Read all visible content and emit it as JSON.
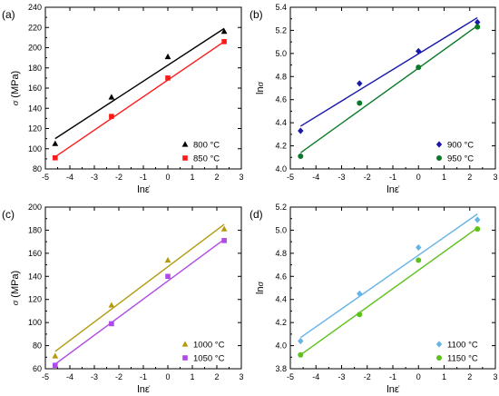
{
  "chart_data": [
    {
      "panel_label": "(a)",
      "type": "scatter",
      "xlabel": "lnε̇",
      "ylabel": "σ (MPa)",
      "xlim": [
        -5,
        3
      ],
      "ylim": [
        80,
        240
      ],
      "xticks": [
        -5,
        -4,
        -3,
        -2,
        -1,
        0,
        1,
        2,
        3
      ],
      "yticks": [
        80,
        100,
        120,
        140,
        160,
        180,
        200,
        220,
        240
      ],
      "legend_position": "bottom-right",
      "series": [
        {
          "name": "800 °C",
          "marker": "triangle",
          "color": "#000000",
          "x": [
            -4.6,
            -2.3,
            0,
            2.3
          ],
          "y": [
            105,
            151,
            191,
            216
          ],
          "fit": [
            [
              -4.6,
              110
            ],
            [
              2.3,
              219
            ]
          ]
        },
        {
          "name": "850 °C",
          "marker": "square",
          "color": "#ff1a1a",
          "x": [
            -4.6,
            -2.3,
            0,
            2.3
          ],
          "y": [
            91,
            132,
            170,
            206
          ],
          "fit": [
            [
              -4.6,
              92
            ],
            [
              2.3,
              206
            ]
          ]
        }
      ]
    },
    {
      "panel_label": "(b)",
      "type": "scatter",
      "xlabel": "lnε̇",
      "ylabel": "lnσ",
      "xlim": [
        -5,
        3
      ],
      "ylim": [
        4.0,
        5.4
      ],
      "xticks": [
        -5,
        -4,
        -3,
        -2,
        -1,
        0,
        1,
        2,
        3
      ],
      "yticks": [
        4.0,
        4.2,
        4.4,
        4.6,
        4.8,
        5.0,
        5.2,
        5.4
      ],
      "legend_position": "bottom-right",
      "series": [
        {
          "name": "900 °C",
          "marker": "diamond",
          "color": "#1a1aaa",
          "x": [
            -4.6,
            -2.3,
            0,
            2.3
          ],
          "y": [
            4.33,
            4.74,
            5.02,
            5.27
          ],
          "fit": [
            [
              -4.6,
              4.37
            ],
            [
              2.3,
              5.31
            ]
          ]
        },
        {
          "name": "950 °C",
          "marker": "circle",
          "color": "#0a7a2a",
          "x": [
            -4.6,
            -2.3,
            0,
            2.3
          ],
          "y": [
            4.11,
            4.57,
            4.88,
            5.23
          ],
          "fit": [
            [
              -4.6,
              4.14
            ],
            [
              2.3,
              5.24
            ]
          ]
        }
      ]
    },
    {
      "panel_label": "(c)",
      "type": "scatter",
      "xlabel": "lnε̇",
      "ylabel": "σ (MPa)",
      "xlim": [
        -5,
        3
      ],
      "ylim": [
        60,
        200
      ],
      "xticks": [
        -5,
        -4,
        -3,
        -2,
        -1,
        0,
        1,
        2,
        3
      ],
      "yticks": [
        60,
        80,
        100,
        120,
        140,
        160,
        180,
        200
      ],
      "legend_position": "bottom-right",
      "series": [
        {
          "name": "1000 °C",
          "marker": "triangle",
          "color": "#b59a10",
          "x": [
            -4.6,
            -2.3,
            0,
            2.3
          ],
          "y": [
            71,
            115,
            154,
            181
          ],
          "fit": [
            [
              -4.6,
              75
            ],
            [
              2.3,
              185
            ]
          ]
        },
        {
          "name": "1050 °C",
          "marker": "square",
          "color": "#b04ae6",
          "x": [
            -4.6,
            -2.3,
            0,
            2.3
          ],
          "y": [
            63,
            99,
            140,
            171
          ],
          "fit": [
            [
              -4.6,
              64
            ],
            [
              2.3,
              172
            ]
          ]
        }
      ]
    },
    {
      "panel_label": "(d)",
      "type": "scatter",
      "xlabel": "lnε̇",
      "ylabel": "lnσ",
      "xlim": [
        -5,
        3
      ],
      "ylim": [
        3.8,
        5.2
      ],
      "xticks": [
        -5,
        -4,
        -3,
        -2,
        -1,
        0,
        1,
        2,
        3
      ],
      "yticks": [
        3.8,
        4.0,
        4.2,
        4.4,
        4.6,
        4.8,
        5.0,
        5.2
      ],
      "legend_position": "bottom-right",
      "series": [
        {
          "name": "1100 °C",
          "marker": "diamond",
          "color": "#66b3e6",
          "x": [
            -4.6,
            -2.3,
            0,
            2.3
          ],
          "y": [
            4.04,
            4.45,
            4.85,
            5.09
          ],
          "fit": [
            [
              -4.6,
              4.07
            ],
            [
              2.3,
              5.14
            ]
          ]
        },
        {
          "name": "1150 °C",
          "marker": "circle",
          "color": "#5cc21a",
          "x": [
            -4.6,
            -2.3,
            0,
            2.3
          ],
          "y": [
            3.92,
            4.27,
            4.74,
            5.01
          ],
          "fit": [
            [
              -4.6,
              3.92
            ],
            [
              2.3,
              5.02
            ]
          ]
        }
      ]
    }
  ]
}
